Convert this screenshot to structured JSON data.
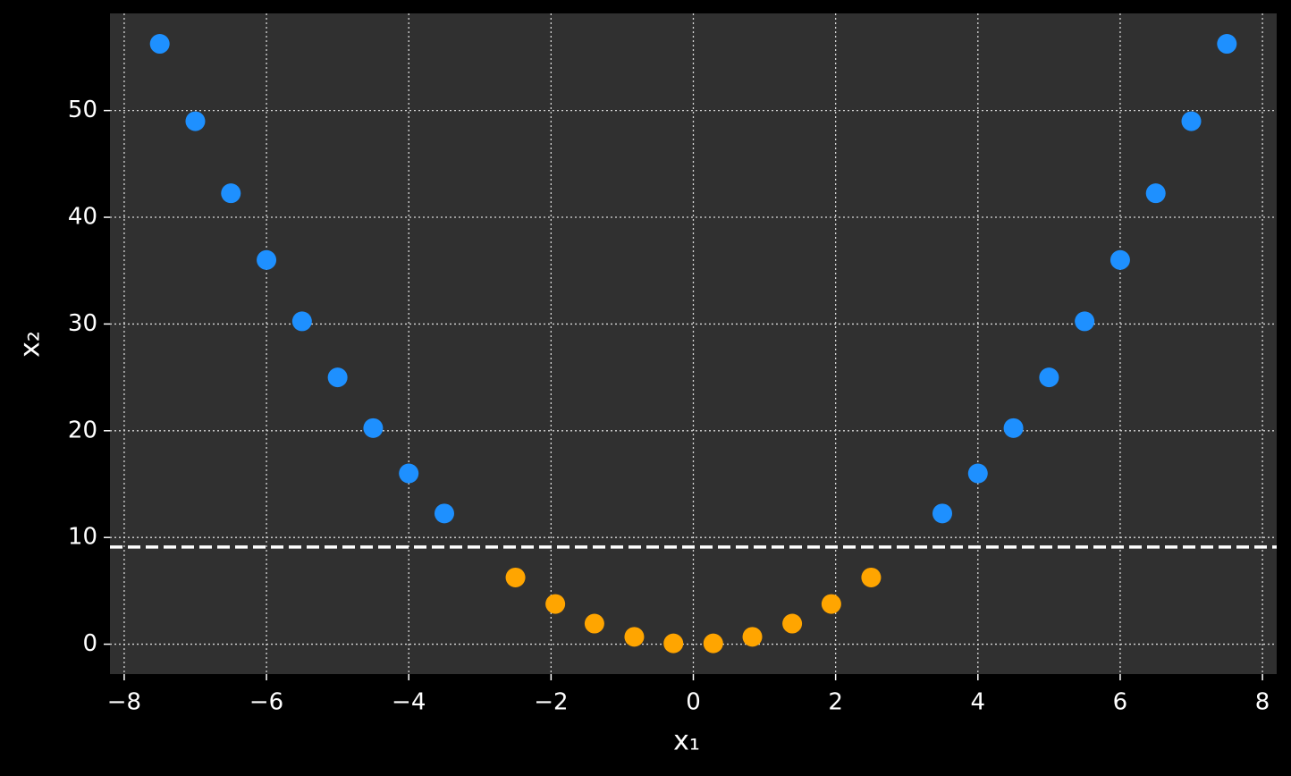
{
  "chart_data": {
    "type": "scatter",
    "x_label": "x₁",
    "y_label": "x₂",
    "series": [
      {
        "color": "#1e90ff",
        "x": [
          -7.5,
          -7,
          -6.5,
          -6,
          -5.5,
          -5,
          -4.5,
          -4,
          -3.5,
          3.5,
          4,
          4.5,
          5,
          5.5,
          6,
          6.5,
          7,
          7.5
        ],
        "values": [
          56.25,
          49,
          42.25,
          36,
          30.25,
          25,
          20.25,
          16,
          12.25,
          12.25,
          16,
          20.25,
          25,
          30.25,
          36,
          42.25,
          49,
          56.25
        ]
      },
      {
        "color": "#ffa500",
        "x": [
          -2.5,
          -1.94,
          -1.39,
          -0.83,
          -0.28,
          0.28,
          0.83,
          1.39,
          1.94,
          2.5
        ],
        "values": [
          6.25,
          3.77,
          1.93,
          0.69,
          0.08,
          0.08,
          0.69,
          1.93,
          3.77,
          6.25
        ]
      }
    ],
    "hline": {
      "value": 9.1,
      "color": "#ffffff",
      "style": "dashed"
    },
    "xlim": [
      -8.2,
      8.2
    ],
    "ylim": [
      -2.8,
      59.1
    ],
    "xticks": [
      {
        "value": -8,
        "label": "−8"
      },
      {
        "value": -6,
        "label": "−6"
      },
      {
        "value": -4,
        "label": "−4"
      },
      {
        "value": -2,
        "label": "−2"
      },
      0,
      2,
      4,
      6,
      8
    ],
    "yticks": [
      0,
      10,
      20,
      30,
      40,
      50
    ],
    "grid": true
  }
}
